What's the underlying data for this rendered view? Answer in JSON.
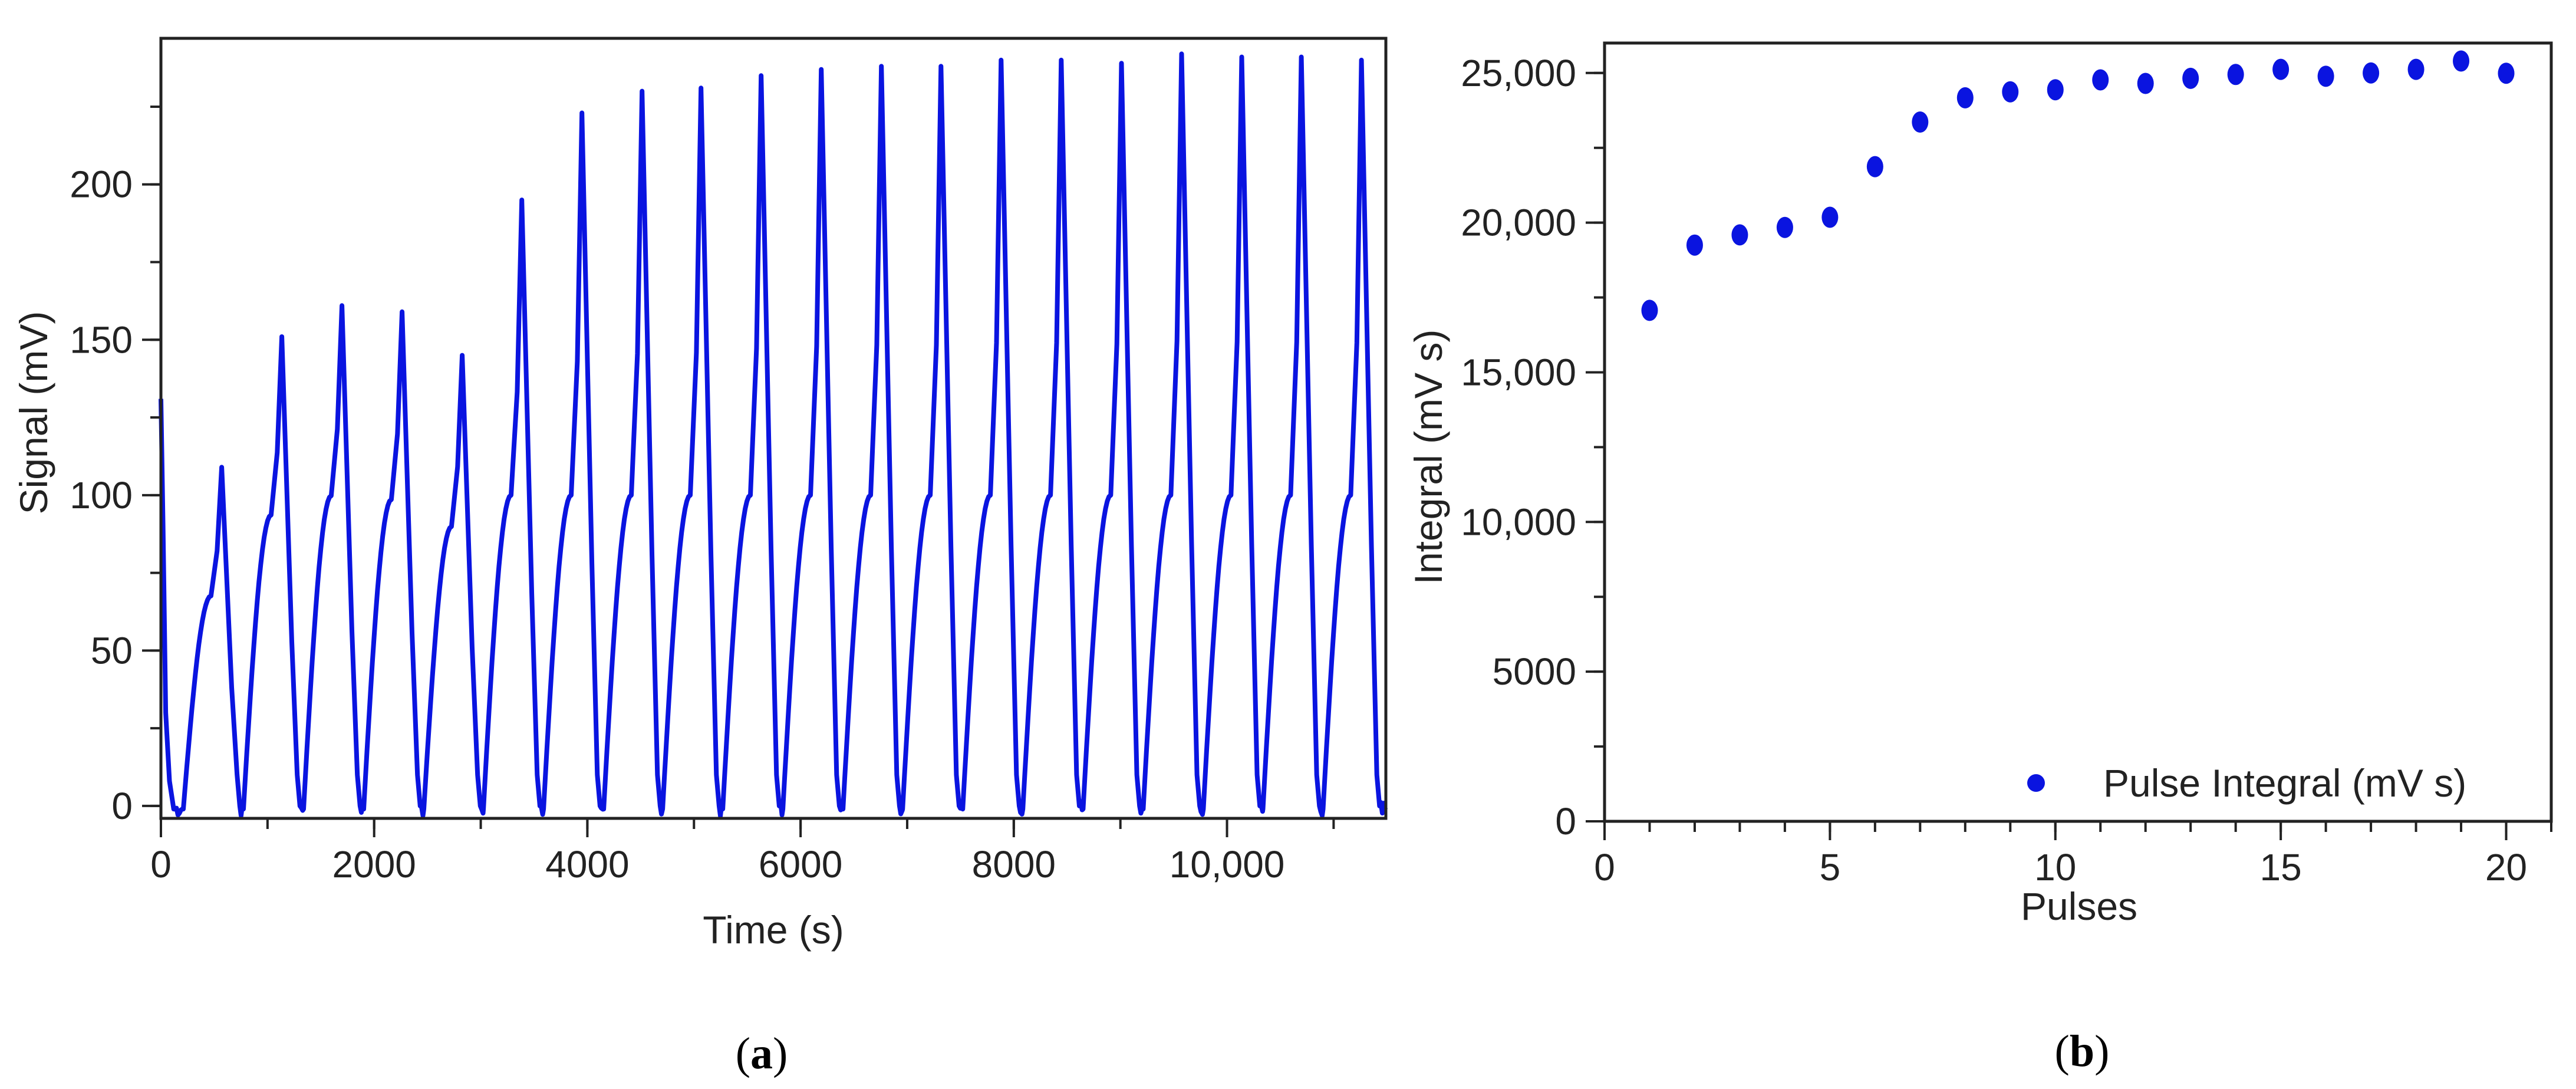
{
  "figure": {
    "panel_a_label": {
      "open": "(",
      "letter": "a",
      "close": ")"
    },
    "panel_b_label": {
      "open": "(",
      "letter": "b",
      "close": ")"
    },
    "colors": {
      "series": "#0a14e0",
      "axis": "#222222",
      "background": "#ffffff"
    }
  },
  "chart_data": [
    {
      "id": "a",
      "type": "line",
      "title": "",
      "xlabel": "Time (s)",
      "ylabel": "Signal (mV)",
      "xlim": [
        0,
        11490
      ],
      "ylim": [
        -4,
        247
      ],
      "grid": false,
      "x_ticks": [
        0,
        2000,
        4000,
        6000,
        8000,
        10000
      ],
      "x_tick_labels": [
        "0",
        "2000",
        "4000",
        "6000",
        "8000",
        "10,000"
      ],
      "x_minor_step": 1000,
      "y_ticks": [
        0,
        50,
        100,
        150,
        200
      ],
      "y_tick_labels": [
        "0",
        "50",
        "100",
        "150",
        "200"
      ],
      "y_minor_step": 25,
      "initial_value": 131,
      "baseline": -1,
      "pulse_times": [
        570,
        1134,
        1698,
        2262,
        2826,
        3385,
        3949,
        4513,
        5066,
        5630,
        6194,
        6758,
        7317,
        7881,
        8445,
        9010,
        9574,
        10138,
        10697,
        11261
      ],
      "pulse_peaks": [
        109,
        151,
        161,
        159,
        145,
        195,
        223,
        230,
        231,
        235,
        237,
        238,
        238,
        240,
        240,
        239,
        242,
        241,
        241,
        240
      ],
      "rise_duration_s": 360,
      "fall_duration_s": 170,
      "artifact_spikes": [
        {
          "t": 1455,
          "v": 18
        },
        {
          "t": 2580,
          "v": 6
        },
        {
          "t": 3140,
          "v": 19
        },
        {
          "t": 4240,
          "v": 7
        },
        {
          "t": 4800,
          "v": 19
        },
        {
          "t": 5930,
          "v": 8
        },
        {
          "t": 6510,
          "v": 16
        },
        {
          "t": 7610,
          "v": 9
        },
        {
          "t": 9300,
          "v": 11
        },
        {
          "t": 10980,
          "v": 12
        }
      ]
    },
    {
      "id": "b",
      "type": "scatter",
      "title": "",
      "xlabel": "Pulses",
      "ylabel": "Integral (mV s)",
      "xlim": [
        0,
        21
      ],
      "ylim": [
        0,
        26000
      ],
      "grid": false,
      "x_ticks": [
        0,
        5,
        10,
        15,
        20
      ],
      "x_tick_labels": [
        "0",
        "5",
        "10",
        "15",
        "20"
      ],
      "x_minor_step": 1,
      "y_ticks": [
        0,
        5000,
        10000,
        15000,
        20000,
        25000
      ],
      "y_tick_labels": [
        "0",
        "5000",
        "10,000",
        "15,000",
        "20,000",
        "25,000"
      ],
      "y_minor_step": 2500,
      "legend": {
        "position": "lower right",
        "entries": [
          "Pulse Integral (mV s)"
        ]
      },
      "series": [
        {
          "name": "Pulse Integral (mV s)",
          "x": [
            1,
            2,
            3,
            4,
            5,
            6,
            7,
            8,
            9,
            10,
            11,
            12,
            13,
            14,
            15,
            16,
            17,
            18,
            19,
            20
          ],
          "values": [
            17070,
            19250,
            19590,
            19840,
            20180,
            21870,
            23360,
            24170,
            24370,
            24440,
            24770,
            24650,
            24820,
            24950,
            25120,
            24890,
            25000,
            25120,
            25400,
            24990
          ]
        }
      ]
    }
  ]
}
